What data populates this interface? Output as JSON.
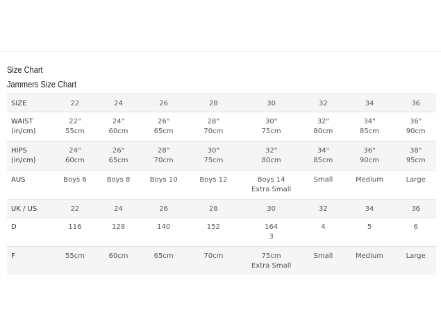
{
  "title": "Size Chart",
  "subtitle": "Jammers Size Chart",
  "rows": [
    {
      "label": [
        "SIZE"
      ],
      "cells": [
        [
          "22"
        ],
        [
          "24"
        ],
        [
          "26"
        ],
        [
          "28"
        ],
        [
          "30"
        ],
        [
          "32"
        ],
        [
          "34"
        ],
        [
          "36"
        ]
      ]
    },
    {
      "label": [
        "WAIST",
        "(in/cm)"
      ],
      "cells": [
        [
          "22\"",
          "55cm"
        ],
        [
          "24\"",
          "60cm"
        ],
        [
          "26\"",
          "65cm"
        ],
        [
          "28\"",
          "70cm"
        ],
        [
          "30\"",
          "75cm"
        ],
        [
          "32\"",
          "80cm"
        ],
        [
          "34\"",
          "85cm"
        ],
        [
          "36\"",
          "90cm"
        ]
      ]
    },
    {
      "label": [
        "HIPS",
        "(in/cm)"
      ],
      "cells": [
        [
          "24\"",
          "60cm"
        ],
        [
          "26\"",
          "65cm"
        ],
        [
          "28\"",
          "70cm"
        ],
        [
          "30\"",
          "75cm"
        ],
        [
          "32\"",
          "80cm"
        ],
        [
          "34\"",
          "85cm"
        ],
        [
          "36\"",
          "90cm"
        ],
        [
          "38\"",
          "95cm"
        ]
      ]
    },
    {
      "label": [
        "AUS"
      ],
      "cells": [
        [
          "Boys 6"
        ],
        [
          "Boys 8"
        ],
        [
          "Boys 10"
        ],
        [
          "Boys 12"
        ],
        [
          "Boys 14",
          "Extra Small"
        ],
        [
          "Small"
        ],
        [
          "Medium"
        ],
        [
          "Large"
        ]
      ]
    },
    {
      "label": [
        "UK / US"
      ],
      "cells": [
        [
          "22"
        ],
        [
          "24"
        ],
        [
          "26"
        ],
        [
          "28"
        ],
        [
          "30"
        ],
        [
          "32"
        ],
        [
          "34"
        ],
        [
          "36"
        ]
      ]
    },
    {
      "label": [
        "D"
      ],
      "cells": [
        [
          "116"
        ],
        [
          "128"
        ],
        [
          "140"
        ],
        [
          "152"
        ],
        [
          "164",
          "3"
        ],
        [
          "4"
        ],
        [
          "5"
        ],
        [
          "6"
        ]
      ]
    },
    {
      "label": [
        "F"
      ],
      "cells": [
        [
          "55cm"
        ],
        [
          "60cm"
        ],
        [
          "65cm"
        ],
        [
          "70cm"
        ],
        [
          "75cm",
          "Extra Small"
        ],
        [
          "Small"
        ],
        [
          "Medium"
        ],
        [
          "Large"
        ]
      ]
    }
  ]
}
